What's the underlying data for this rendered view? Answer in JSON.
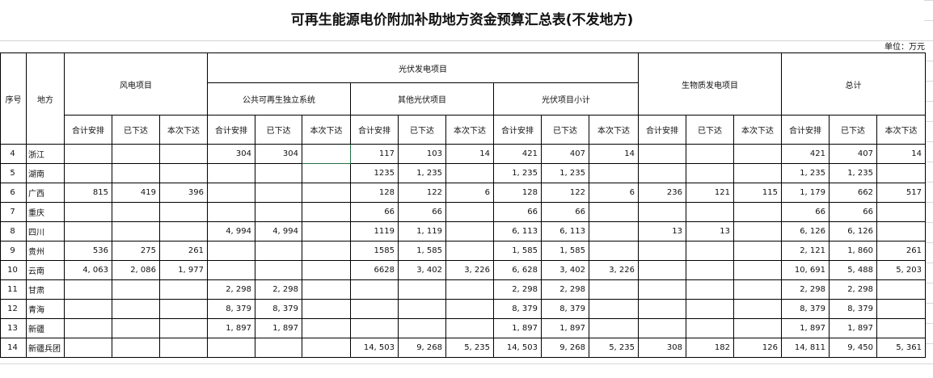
{
  "title": "可再生能源电价附加补助地方资金预算汇总表(不发地方)",
  "unit": "单位：万元",
  "headers": {
    "seq": "序号",
    "region": "地方",
    "wind": "风电项目",
    "pv": "光伏发电项目",
    "pv_public": "公共可再生独立系统",
    "pv_other": "其他光伏项目",
    "pv_subtotal": "光伏项目小计",
    "biomass": "生物质发电项目",
    "total": "总计",
    "sub": [
      "合计安排",
      "已下达",
      "本次下达"
    ]
  },
  "rows": [
    {
      "seq": "4",
      "region": "浙江",
      "values": [
        "",
        "",
        "",
        "304",
        "304",
        "",
        "117",
        "103",
        "14",
        "421",
        "407",
        "14",
        "",
        "",
        "",
        "421",
        "407",
        "14"
      ]
    },
    {
      "seq": "5",
      "region": "湖南",
      "values": [
        "",
        "",
        "",
        "",
        "",
        "",
        "1235",
        "1, 235",
        "",
        "1, 235",
        "1, 235",
        "",
        "",
        "",
        "",
        "1, 235",
        "1, 235",
        ""
      ]
    },
    {
      "seq": "6",
      "region": "广西",
      "values": [
        "815",
        "419",
        "396",
        "",
        "",
        "",
        "128",
        "122",
        "6",
        "128",
        "122",
        "6",
        "236",
        "121",
        "115",
        "1, 179",
        "662",
        "517"
      ]
    },
    {
      "seq": "7",
      "region": "重庆",
      "values": [
        "",
        "",
        "",
        "",
        "",
        "",
        "66",
        "66",
        "",
        "66",
        "66",
        "",
        "",
        "",
        "",
        "66",
        "66",
        ""
      ]
    },
    {
      "seq": "8",
      "region": "四川",
      "values": [
        "",
        "",
        "",
        "4, 994",
        "4, 994",
        "",
        "1119",
        "1, 119",
        "",
        "6, 113",
        "6, 113",
        "",
        "13",
        "13",
        "",
        "6, 126",
        "6, 126",
        ""
      ]
    },
    {
      "seq": "9",
      "region": "贵州",
      "values": [
        "536",
        "275",
        "261",
        "",
        "",
        "",
        "1585",
        "1, 585",
        "",
        "1, 585",
        "1, 585",
        "",
        "",
        "",
        "",
        "2, 121",
        "1, 860",
        "261"
      ]
    },
    {
      "seq": "10",
      "region": "云南",
      "values": [
        "4, 063",
        "2, 086",
        "1, 977",
        "",
        "",
        "",
        "6628",
        "3, 402",
        "3, 226",
        "6, 628",
        "3, 402",
        "3, 226",
        "",
        "",
        "",
        "10, 691",
        "5, 488",
        "5, 203"
      ]
    },
    {
      "seq": "11",
      "region": "甘肃",
      "values": [
        "",
        "",
        "",
        "2, 298",
        "2, 298",
        "",
        "",
        "",
        "",
        "2, 298",
        "2, 298",
        "",
        "",
        "",
        "",
        "2, 298",
        "2, 298",
        ""
      ]
    },
    {
      "seq": "12",
      "region": "青海",
      "values": [
        "",
        "",
        "",
        "8, 379",
        "8, 379",
        "",
        "",
        "",
        "",
        "8, 379",
        "8, 379",
        "",
        "",
        "",
        "",
        "8, 379",
        "8, 379",
        ""
      ]
    },
    {
      "seq": "13",
      "region": "新疆",
      "values": [
        "",
        "",
        "",
        "1, 897",
        "1, 897",
        "",
        "",
        "",
        "",
        "1, 897",
        "1, 897",
        "",
        "",
        "",
        "",
        "1, 897",
        "1, 897",
        ""
      ]
    },
    {
      "seq": "14",
      "region": "新疆兵团",
      "values": [
        "",
        "",
        "",
        "",
        "",
        "",
        "14, 503",
        "9, 268",
        "5, 235",
        "14, 503",
        "9, 268",
        "5, 235",
        "308",
        "182",
        "126",
        "14, 811",
        "9, 450",
        "5, 361"
      ]
    }
  ]
}
